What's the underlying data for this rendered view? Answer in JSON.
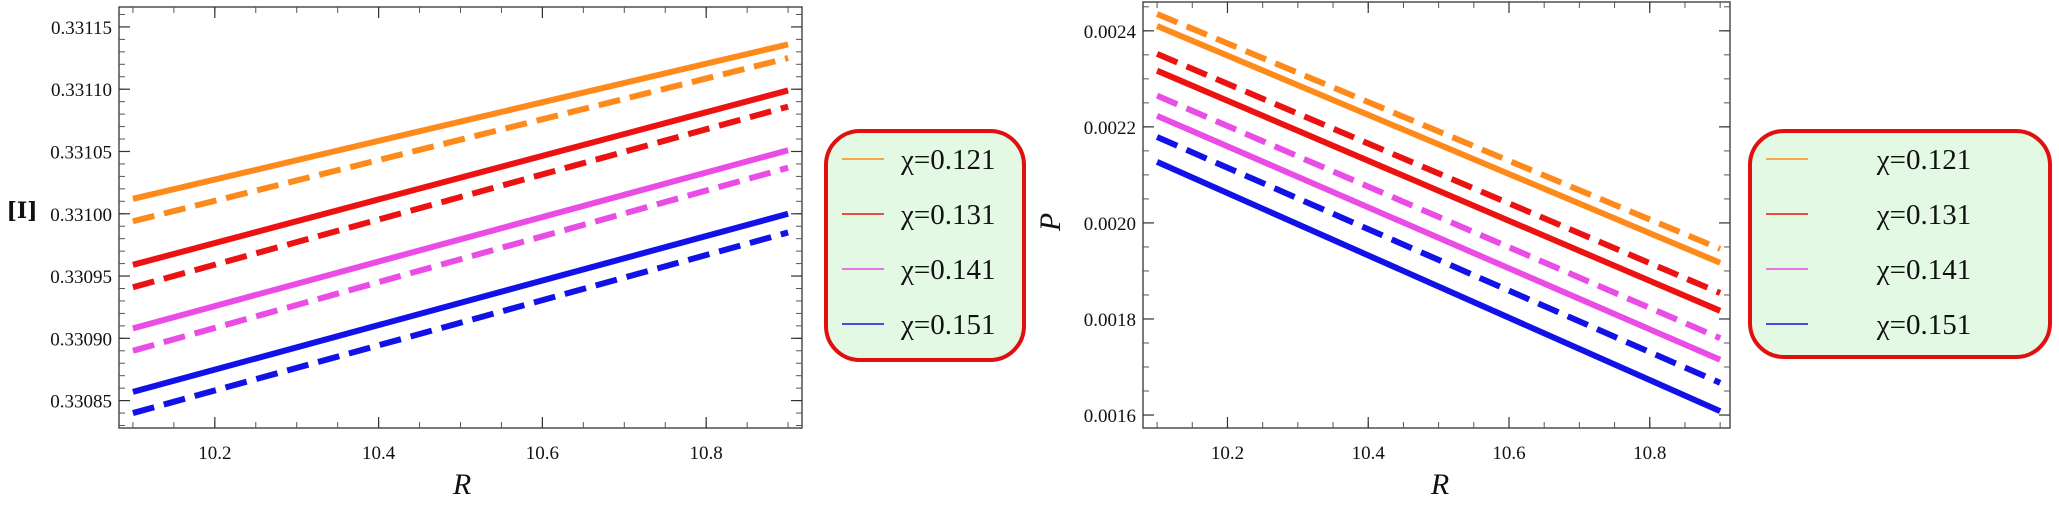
{
  "chart_data": [
    {
      "type": "line",
      "title": "",
      "xlabel": "R",
      "ylabel": "[I]",
      "xlim": [
        10.083,
        10.917
      ],
      "ylim": [
        0.330828,
        0.331166
      ],
      "xticks": [
        "10.2",
        "10.4",
        "10.6",
        "10.8"
      ],
      "xtick_values": [
        10.2,
        10.4,
        10.6,
        10.8
      ],
      "yticks": [
        "0.33085",
        "0.33090",
        "0.33095",
        "0.33100",
        "0.33105",
        "0.33110",
        "0.33115"
      ],
      "ytick_values": [
        0.33085,
        0.3309,
        0.33095,
        0.331,
        0.33105,
        0.3311,
        0.33115
      ],
      "ytick_minor_step": 1e-05,
      "xtick_minor_step": 0.05,
      "grid": false,
      "legend_placement": "right",
      "legend": [
        "χ=0.121",
        "χ=0.131",
        "χ=0.141",
        "χ=0.151"
      ],
      "x": [
        10.1,
        10.9
      ],
      "series": [
        {
          "name": "χ=0.121",
          "style": "solid",
          "color": "#ff8a1c",
          "values": [
            0.331012,
            0.331136
          ]
        },
        {
          "name": "χ=0.121 (dashed)",
          "style": "dashed",
          "color": "#ff8a1c",
          "values": [
            0.330994,
            0.331125
          ]
        },
        {
          "name": "χ=0.131",
          "style": "solid",
          "color": "#ec1212",
          "values": [
            0.330959,
            0.331099
          ]
        },
        {
          "name": "χ=0.131 (dashed)",
          "style": "dashed",
          "color": "#ec1212",
          "values": [
            0.330941,
            0.331086
          ]
        },
        {
          "name": "χ=0.141",
          "style": "solid",
          "color": "#ea4ce6",
          "values": [
            0.330908,
            0.331051
          ]
        },
        {
          "name": "χ=0.141 (dashed)",
          "style": "dashed",
          "color": "#ea4ce6",
          "values": [
            0.33089,
            0.331037
          ]
        },
        {
          "name": "χ=0.151",
          "style": "solid",
          "color": "#1212e8",
          "values": [
            0.330857,
            0.331
          ]
        },
        {
          "name": "χ=0.151 (dashed)",
          "style": "dashed",
          "color": "#1212e8",
          "values": [
            0.33084,
            0.330985
          ]
        }
      ]
    },
    {
      "type": "line",
      "title": "",
      "xlabel": "R",
      "ylabel": "P",
      "xlim": [
        10.08,
        10.914
      ],
      "ylim": [
        0.001573,
        0.00246
      ],
      "xticks": [
        "10.2",
        "10.4",
        "10.6",
        "10.8"
      ],
      "xtick_values": [
        10.2,
        10.4,
        10.6,
        10.8
      ],
      "yticks": [
        "0.0016",
        "0.0018",
        "0.0020",
        "0.0022",
        "0.0024"
      ],
      "ytick_values": [
        0.0016,
        0.0018,
        0.002,
        0.0022,
        0.0024
      ],
      "ytick_minor_step": 5e-05,
      "xtick_minor_step": 0.05,
      "grid": false,
      "legend_placement": "right",
      "legend": [
        "χ=0.121",
        "χ=0.131",
        "χ=0.141",
        "χ=0.151"
      ],
      "x": [
        10.1,
        10.9
      ],
      "series": [
        {
          "name": "χ=0.121",
          "style": "solid",
          "color": "#ff8a1c",
          "values": [
            0.00241,
            0.001917
          ]
        },
        {
          "name": "χ=0.121 (dashed)",
          "style": "dashed",
          "color": "#ff8a1c",
          "values": [
            0.002435,
            0.001946
          ]
        },
        {
          "name": "χ=0.131",
          "style": "solid",
          "color": "#ec1212",
          "values": [
            0.002317,
            0.001817
          ]
        },
        {
          "name": "χ=0.131 (dashed)",
          "style": "dashed",
          "color": "#ec1212",
          "values": [
            0.002352,
            0.001854
          ]
        },
        {
          "name": "χ=0.141",
          "style": "solid",
          "color": "#ea4ce6",
          "values": [
            0.002223,
            0.001715
          ]
        },
        {
          "name": "χ=0.141 (dashed)",
          "style": "dashed",
          "color": "#ea4ce6",
          "values": [
            0.002265,
            0.00176
          ]
        },
        {
          "name": "χ=0.151",
          "style": "solid",
          "color": "#1212e8",
          "values": [
            0.002127,
            0.001608
          ]
        },
        {
          "name": "χ=0.151 (dashed)",
          "style": "dashed",
          "color": "#1212e8",
          "values": [
            0.002179,
            0.001667
          ]
        }
      ]
    }
  ],
  "legend_colors": [
    "#ff8a1c",
    "#ec1212",
    "#ea4ce6",
    "#1212e8"
  ],
  "legend_style": {
    "background": "#e3f9e3",
    "border": "#e01010"
  }
}
